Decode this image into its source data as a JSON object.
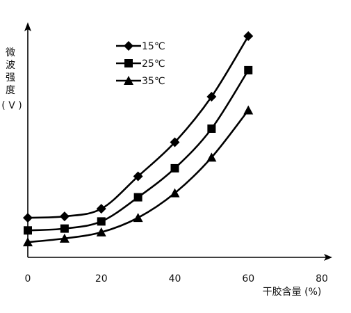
{
  "chart_data": {
    "type": "line",
    "title": "",
    "xlabel": "干胶含量 (%)",
    "ylabel": "微波强度 (V)",
    "ylabel_chars": [
      "微",
      "波",
      "强",
      "度"
    ],
    "ylabel_unit": "( V )",
    "xlim": [
      0,
      80
    ],
    "x_ticks": [
      "0",
      "20",
      "40",
      "60",
      "80"
    ],
    "y_ticks": [],
    "ylim": [
      0,
      1
    ],
    "grid": false,
    "legend_position": "top-left",
    "x": [
      0,
      10,
      20,
      30,
      40,
      50,
      60
    ],
    "series": [
      {
        "name": "15℃",
        "marker": "diamond",
        "values": [
          0.172,
          0.178,
          0.211,
          0.352,
          0.5,
          0.698,
          0.961
        ]
      },
      {
        "name": "25℃",
        "marker": "square",
        "values": [
          0.117,
          0.125,
          0.156,
          0.261,
          0.387,
          0.559,
          0.813
        ]
      },
      {
        "name": "35℃",
        "marker": "triangle",
        "values": [
          0.066,
          0.082,
          0.109,
          0.172,
          0.279,
          0.434,
          0.639
        ]
      }
    ],
    "colors": {
      "line": "#000000",
      "text": "#111111"
    }
  }
}
